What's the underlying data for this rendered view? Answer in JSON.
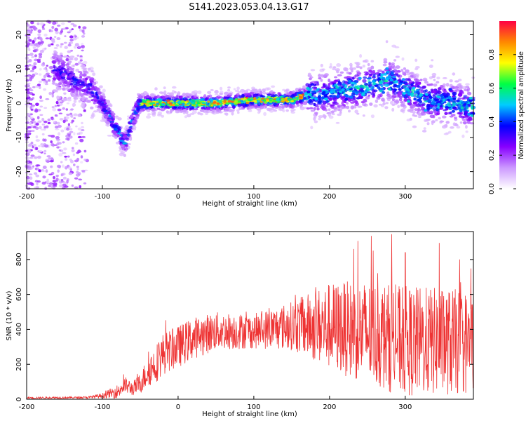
{
  "figure_title": "S141.2023.053.04.13.G17",
  "chart_data": [
    {
      "type": "heatmap",
      "title": "S141.2023.053.04.13.G17",
      "xlabel": "Height of straight line (km)",
      "ylabel": "Frequency (Hz)",
      "xlim": [
        -200,
        390
      ],
      "ylim": [
        -25,
        24
      ],
      "xticks": [
        "-200",
        "-100",
        "0",
        "100",
        "200",
        "300"
      ],
      "yticks": [
        "-20",
        "-10",
        "0",
        "10",
        "20"
      ],
      "colorbar": {
        "label": "Normalized spectral amplitude",
        "range": [
          0,
          1
        ],
        "ticks": [
          "0.0",
          "0.2",
          "0.4",
          "0.6",
          "0.8"
        ],
        "colormap": [
          "#ffffff",
          "#cc99ff",
          "#8800ff",
          "#0000ff",
          "#00ccff",
          "#00ff44",
          "#ffff00",
          "#ff8800",
          "#ff0044"
        ]
      },
      "ridge": {
        "x": [
          -160,
          -140,
          -120,
          -110,
          -100,
          -90,
          -80,
          -70,
          -62,
          -55,
          -50,
          -40,
          0,
          50,
          100,
          150,
          165,
          200,
          250,
          280,
          300,
          330,
          360,
          390
        ],
        "y": [
          10,
          7,
          5,
          3,
          0,
          -4,
          -8,
          -12,
          -6,
          -2,
          0,
          0,
          0,
          0,
          1,
          1,
          2,
          3,
          5,
          7,
          4,
          1,
          0,
          -1
        ]
      }
    },
    {
      "type": "line",
      "xlabel": "Height of straight line (km)",
      "ylabel": "SNR (10 * v/v)",
      "xlim": [
        -200,
        390
      ],
      "ylim": [
        0,
        960
      ],
      "xticks": [
        "-200",
        "-100",
        "0",
        "100",
        "200",
        "300"
      ],
      "yticks": [
        "0",
        "200",
        "400",
        "600",
        "800"
      ],
      "color": "#ee3333",
      "envelope": {
        "x": [
          -200,
          -120,
          -100,
          -80,
          -70,
          -60,
          -50,
          -40,
          -30,
          -20,
          0,
          20,
          50,
          100,
          150,
          200,
          250,
          300,
          350,
          390
        ],
        "mean": [
          8,
          10,
          20,
          45,
          80,
          60,
          90,
          160,
          200,
          260,
          300,
          350,
          390,
          390,
          420,
          420,
          380,
          330,
          330,
          320
        ],
        "spread": [
          5,
          6,
          15,
          40,
          50,
          40,
          60,
          90,
          110,
          120,
          120,
          120,
          110,
          100,
          140,
          250,
          300,
          320,
          310,
          300
        ]
      },
      "peaks": [
        {
          "x": 255,
          "y": 935
        },
        {
          "x": 282,
          "y": 945
        },
        {
          "x": 345,
          "y": 895
        },
        {
          "x": 300,
          "y": 840
        },
        {
          "x": 232,
          "y": 860
        }
      ]
    }
  ]
}
